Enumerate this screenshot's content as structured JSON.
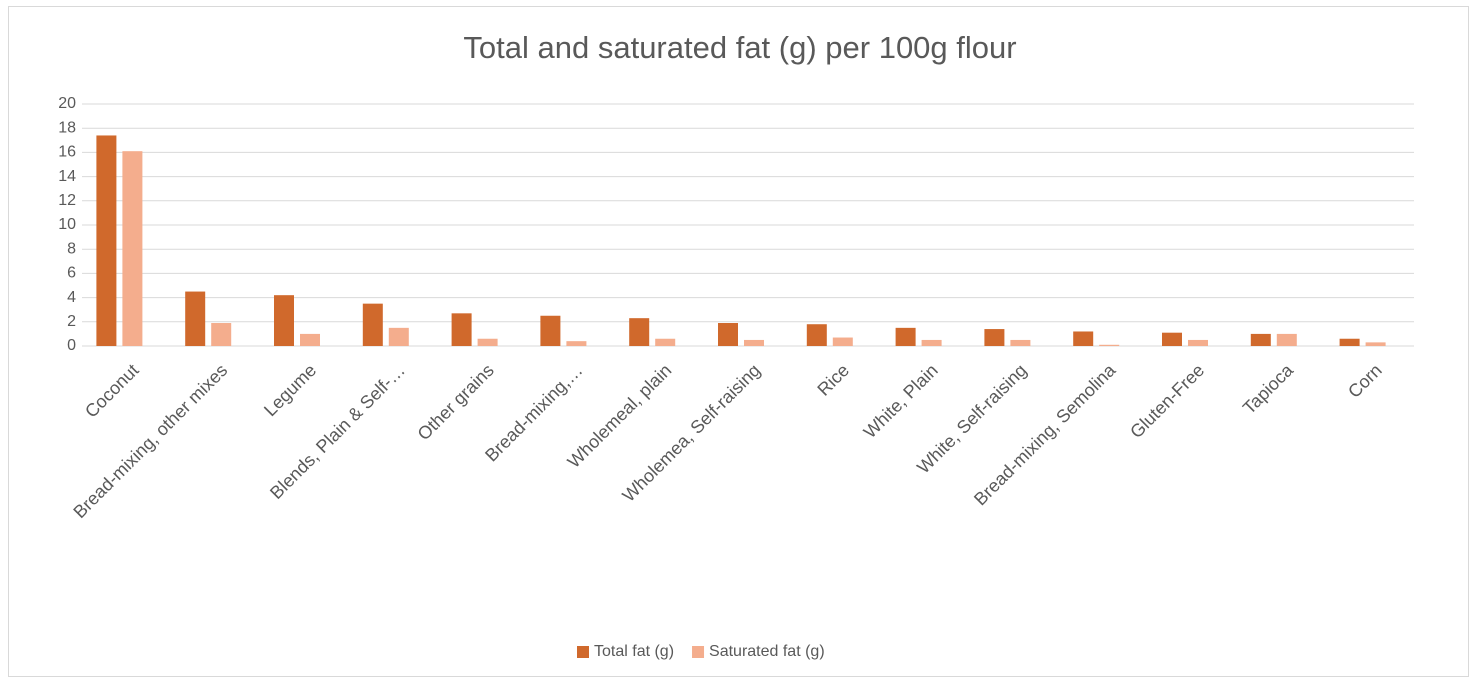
{
  "chart_data": {
    "type": "bar",
    "title": "Total and saturated fat (g) per 100g flour",
    "categories": [
      "Coconut",
      "Bread-mixing, other mixes",
      "Legume",
      "Blends, Plain & Self-…",
      "Other grains",
      "Bread-mixing,…",
      "Wholemeal, plain",
      "Wholemea, Self-raising",
      "Rice",
      "White, Plain",
      "White, Self-raising",
      "Bread-mixing, Semolina",
      "Gluten-Free",
      "Tapioca",
      "Corn"
    ],
    "series": [
      {
        "name": "Total fat (g)",
        "color": "#d0692c",
        "values": [
          17.4,
          4.5,
          4.2,
          3.5,
          2.7,
          2.5,
          2.3,
          1.9,
          1.8,
          1.5,
          1.4,
          1.2,
          1.1,
          1.0,
          0.6
        ]
      },
      {
        "name": "Saturated fat (g)",
        "color": "#f4ad8d",
        "values": [
          16.1,
          1.9,
          1.0,
          1.5,
          0.6,
          0.4,
          0.6,
          0.5,
          0.7,
          0.5,
          0.5,
          0.1,
          0.5,
          1.0,
          0.3
        ]
      }
    ],
    "ylim": [
      0,
      20
    ],
    "yticks": [
      0,
      2,
      4,
      6,
      8,
      10,
      12,
      14,
      16,
      18,
      20
    ],
    "grid": true,
    "legend": "bottom"
  }
}
